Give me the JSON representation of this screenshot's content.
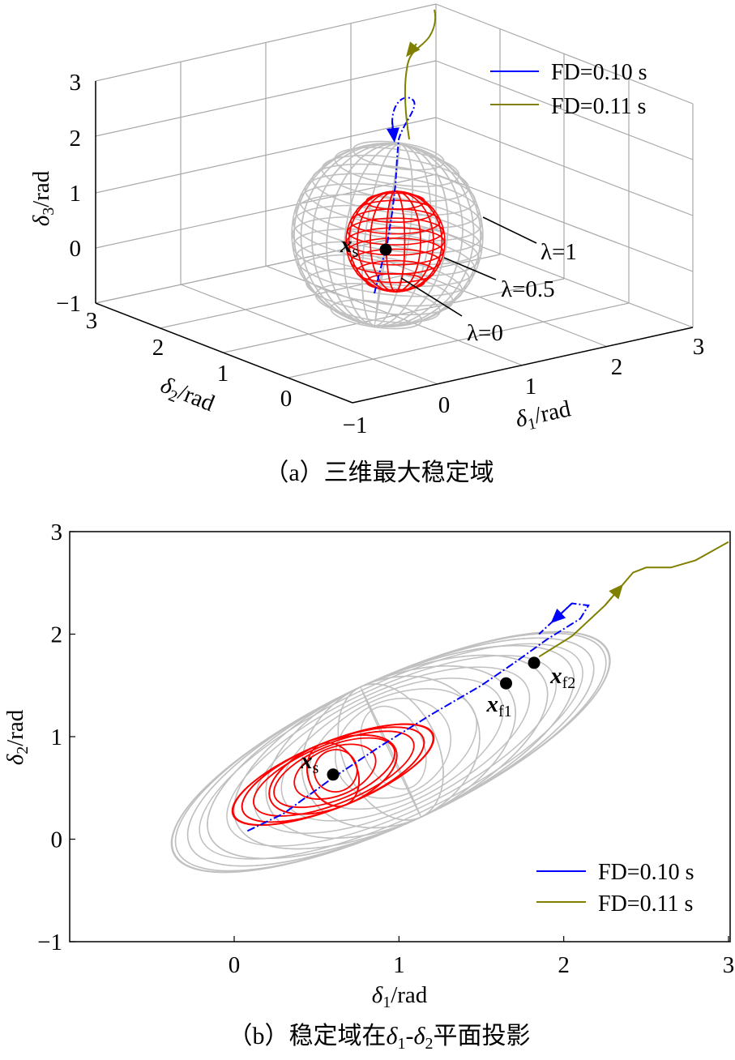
{
  "figure": {
    "caption_a": "（a）三维最大稳定域",
    "caption_b": "（b）稳定域在δ1-δ2平面投影",
    "caption_b_parts": [
      "（b）稳定域在",
      "δ",
      "1",
      "-",
      "δ",
      "2",
      "平面投影"
    ]
  },
  "chart_data": [
    {
      "id": "a",
      "type": "line",
      "projection": "3d",
      "axes": {
        "x": {
          "symbol": "δ",
          "sub": "1",
          "unit": "/rad",
          "range": [
            -1,
            3
          ],
          "ticks": [
            "−1",
            "0",
            "1",
            "2",
            "3"
          ]
        },
        "y": {
          "symbol": "δ",
          "sub": "2",
          "unit": "/rad",
          "range": [
            -1,
            3
          ],
          "ticks": [
            "0",
            "1",
            "2",
            "3"
          ]
        },
        "z": {
          "symbol": "δ",
          "sub": "3",
          "unit": "/rad",
          "range": [
            -1,
            3
          ],
          "ticks": [
            "−1",
            "0",
            "1",
            "2",
            "3"
          ]
        }
      },
      "grid": true,
      "legend": {
        "placement": "top-right",
        "entries": [
          {
            "label": "FD=0.10 s",
            "color": "#0000ff"
          },
          {
            "label": "FD=0.11 s",
            "color": "#808000"
          }
        ]
      },
      "surfaces": [
        {
          "label": "λ=1",
          "color": "#c0c0c0"
        },
        {
          "label": "λ=0.5",
          "color": "#ff0000"
        }
      ],
      "annotations": [
        {
          "label": "λ=0"
        },
        {
          "label": "x",
          "sub": "s"
        }
      ]
    },
    {
      "id": "b",
      "type": "line",
      "axes": {
        "x": {
          "symbol": "δ",
          "sub": "1",
          "unit": "/rad",
          "range": [
            -1,
            3
          ],
          "ticks": [
            "0",
            "1",
            "2",
            "3"
          ]
        },
        "y": {
          "symbol": "δ",
          "sub": "2",
          "unit": "/rad",
          "range": [
            -1,
            3
          ],
          "ticks": [
            "−1",
            "0",
            "1",
            "2",
            "3"
          ]
        }
      },
      "grid": false,
      "legend": {
        "placement": "bottom-right",
        "entries": [
          {
            "label": "FD=0.10 s",
            "color": "#0000ff"
          },
          {
            "label": "FD=0.11 s",
            "color": "#808000"
          }
        ]
      },
      "series": [
        {
          "name": "FD=0.10 s",
          "color": "#0000ff",
          "x": [
            0.08,
            0.3,
            0.6,
            0.9,
            1.2,
            1.5,
            1.7,
            1.9,
            2.1,
            2.15,
            2.05,
            1.85
          ],
          "y": [
            0.08,
            0.25,
            0.6,
            0.92,
            1.22,
            1.5,
            1.72,
            1.95,
            2.15,
            2.28,
            2.3,
            2.0
          ]
        },
        {
          "name": "FD=0.11 s",
          "color": "#808000",
          "x": [
            1.85,
            2.05,
            2.25,
            2.42,
            2.5,
            2.65,
            2.8,
            3.0
          ],
          "y": [
            1.78,
            1.98,
            2.28,
            2.6,
            2.65,
            2.65,
            2.72,
            2.9
          ]
        }
      ],
      "points": [
        {
          "label": "x",
          "sub": "s",
          "x": 0.6,
          "y": 0.63
        },
        {
          "label": "x",
          "sub": "f1",
          "x": 1.65,
          "y": 1.52
        },
        {
          "label": "x",
          "sub": "f2",
          "x": 1.82,
          "y": 1.72
        }
      ],
      "regions": [
        {
          "label": "λ=1",
          "color": "#c0c0c0",
          "cx": 0.95,
          "cy": 0.85,
          "rx": 1.45,
          "ry": 0.7,
          "angle_deg": 25
        },
        {
          "label": "λ=0.5",
          "color": "#ff0000",
          "cx": 0.6,
          "cy": 0.63,
          "rx": 0.65,
          "ry": 0.32,
          "angle_deg": 22
        }
      ]
    }
  ]
}
